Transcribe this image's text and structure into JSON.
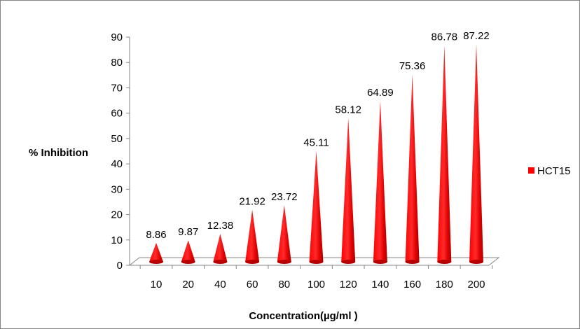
{
  "chart_data": {
    "type": "bar",
    "bar_shape": "cone",
    "categories": [
      "10",
      "20",
      "40",
      "60",
      "80",
      "100",
      "120",
      "140",
      "160",
      "180",
      "200"
    ],
    "series": [
      {
        "name": "HCT15",
        "color": "#ff0000",
        "values": [
          8.86,
          9.87,
          12.38,
          21.92,
          23.72,
          45.11,
          58.12,
          64.89,
          75.36,
          86.78,
          87.22
        ],
        "labels": [
          "8.86",
          "9.87",
          "12.38",
          "21.92",
          "23.72",
          "45.11",
          "58.12",
          "64.89",
          "75.36",
          "86.78",
          "87.22"
        ]
      }
    ],
    "xlabel": "Concentration(µg/ml )",
    "ylabel": "% Inhibition",
    "ylim": [
      0,
      90
    ],
    "yticks": [
      "0",
      "10",
      "20",
      "30",
      "40",
      "50",
      "60",
      "70",
      "80",
      "90"
    ],
    "grid": false,
    "legend": {
      "position": "right",
      "entries": [
        "HCT15"
      ]
    },
    "colors": {
      "bar_main": "#ff0000",
      "bar_dark": "#a80000",
      "bar_light": "#ff6a6a",
      "axis": "#868686"
    }
  }
}
